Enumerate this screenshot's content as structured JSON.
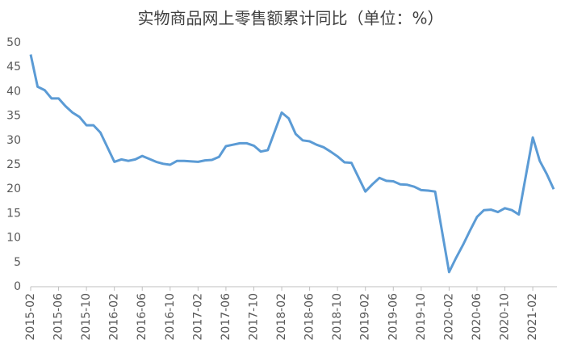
{
  "chart_data": {
    "type": "line",
    "title": "实物商品网上零售额累计同比（单位：%）",
    "x": [
      "2015-02",
      "2015-03",
      "2015-04",
      "2015-05",
      "2015-06",
      "2015-07",
      "2015-08",
      "2015-09",
      "2015-10",
      "2015-11",
      "2015-12",
      "2016-02",
      "2016-03",
      "2016-04",
      "2016-05",
      "2016-06",
      "2016-07",
      "2016-08",
      "2016-09",
      "2016-10",
      "2016-11",
      "2016-12",
      "2017-02",
      "2017-03",
      "2017-04",
      "2017-05",
      "2017-06",
      "2017-07",
      "2017-08",
      "2017-09",
      "2017-10",
      "2017-11",
      "2017-12",
      "2018-02",
      "2018-03",
      "2018-04",
      "2018-05",
      "2018-06",
      "2018-07",
      "2018-08",
      "2018-09",
      "2018-10",
      "2018-11",
      "2018-12",
      "2019-02",
      "2019-03",
      "2019-04",
      "2019-05",
      "2019-06",
      "2019-07",
      "2019-08",
      "2019-09",
      "2019-10",
      "2019-11",
      "2019-12",
      "2020-02",
      "2020-03",
      "2020-04",
      "2020-05",
      "2020-06",
      "2020-07",
      "2020-08",
      "2020-09",
      "2020-10",
      "2020-11",
      "2020-12",
      "2021-02",
      "2021-03",
      "2021-04",
      "2021-05"
    ],
    "values": [
      47.6,
      41,
      40.3,
      38.6,
      38.6,
      37,
      35.7,
      34.8,
      33.1,
      33.1,
      31.6,
      25.6,
      26.1,
      25.8,
      26.1,
      26.8,
      26.2,
      25.6,
      25.2,
      25,
      25.8,
      25.8,
      25.6,
      25.9,
      26,
      26.6,
      28.8,
      29.1,
      29.4,
      29.4,
      28.9,
      27.7,
      28,
      35.7,
      34.5,
      31.3,
      30,
      29.8,
      29.1,
      28.6,
      27.7,
      26.7,
      25.5,
      25.4,
      19.5,
      21,
      22.3,
      21.7,
      21.6,
      21,
      20.9,
      20.5,
      19.8,
      19.7,
      19.5,
      3,
      5.9,
      8.6,
      11.5,
      14.3,
      15.7,
      15.8,
      15.3,
      16.1,
      15.7,
      14.8,
      30.6,
      25.8,
      23.1,
      20
    ],
    "color": "#5b9bd5",
    "xlim": [
      "2015-02",
      "2021-05"
    ],
    "xticks": [
      "2015-02",
      "2015-06",
      "2015-10",
      "2016-02",
      "2016-06",
      "2016-10",
      "2017-02",
      "2017-06",
      "2017-10",
      "2018-02",
      "2018-06",
      "2018-10",
      "2019-02",
      "2019-06",
      "2019-10",
      "2020-02",
      "2020-06",
      "2020-10",
      "2021-02"
    ],
    "ylim": [
      0,
      50
    ],
    "yticks": [
      0,
      5,
      10,
      15,
      20,
      25,
      30,
      35,
      40,
      45,
      50
    ],
    "grid": false
  }
}
